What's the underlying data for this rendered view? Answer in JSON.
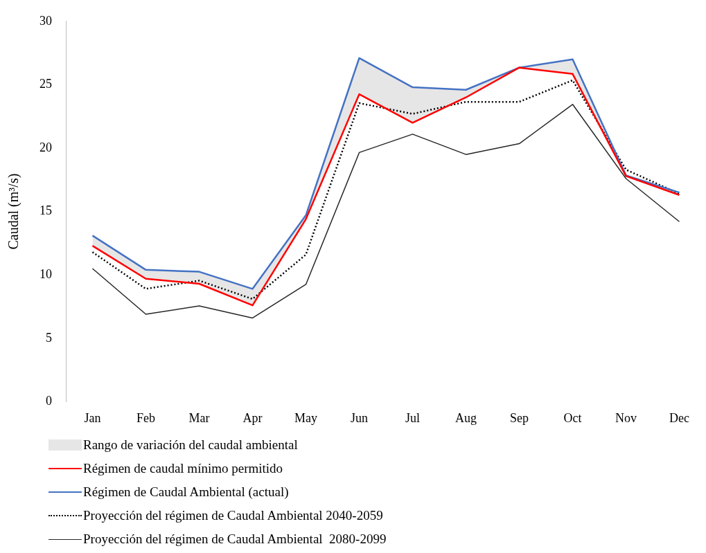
{
  "chart_data": {
    "type": "line",
    "ylabel": "Caudal (m³/s)",
    "categories": [
      "Jan",
      "Feb",
      "Mar",
      "Apr",
      "May",
      "Jun",
      "Jul",
      "Aug",
      "Sep",
      "Oct",
      "Nov",
      "Dec"
    ],
    "ylim": [
      0,
      30
    ],
    "yticks": [
      0,
      5,
      10,
      15,
      20,
      25,
      30
    ],
    "grid": false,
    "legend": "bottom",
    "marker": "none",
    "annotations": [
      "Rango de variación del caudal ambiental"
    ],
    "series": [
      {
        "name": "Régimen de caudal mínimo permitido",
        "color": "#ff0000",
        "line_style": "solid",
        "values": [
          12.3,
          9.7,
          9.3,
          7.6,
          14.4,
          24.25,
          22.0,
          24.0,
          26.35,
          25.85,
          17.8,
          16.3
        ],
        "lower": [
          12.3,
          9.7,
          9.3,
          7.6,
          14.4,
          24.25,
          22.0,
          24.0,
          26.35,
          25.85,
          17.8,
          16.3
        ],
        "upper": [
          13.1,
          10.4,
          10.25,
          8.9,
          14.7,
          27.1,
          24.8,
          24.6,
          26.35,
          27.0,
          17.85,
          16.5
        ]
      },
      {
        "name": "Régimen de Caudal Ambiental (actual)",
        "color": "#4472c4",
        "line_style": "solid",
        "values": [
          13.1,
          10.4,
          10.25,
          8.9,
          14.7,
          27.1,
          24.8,
          24.6,
          26.35,
          27.0,
          17.85,
          16.5
        ]
      },
      {
        "name": "Proyección del régimen de Caudal Ambiental 2040-2059",
        "color": "#000000",
        "line_style": "dotted",
        "values": [
          11.8,
          8.9,
          9.55,
          8.1,
          11.6,
          23.55,
          22.7,
          23.65,
          23.65,
          25.35,
          18.3,
          16.4
        ]
      },
      {
        "name": "Proyección del régimen de Caudal Ambiental  2080-2099",
        "color": "#262626",
        "line_style": "solid",
        "values": [
          10.5,
          6.9,
          7.55,
          6.6,
          9.25,
          19.65,
          21.1,
          19.5,
          20.35,
          23.45,
          17.6,
          14.2
        ]
      }
    ]
  }
}
